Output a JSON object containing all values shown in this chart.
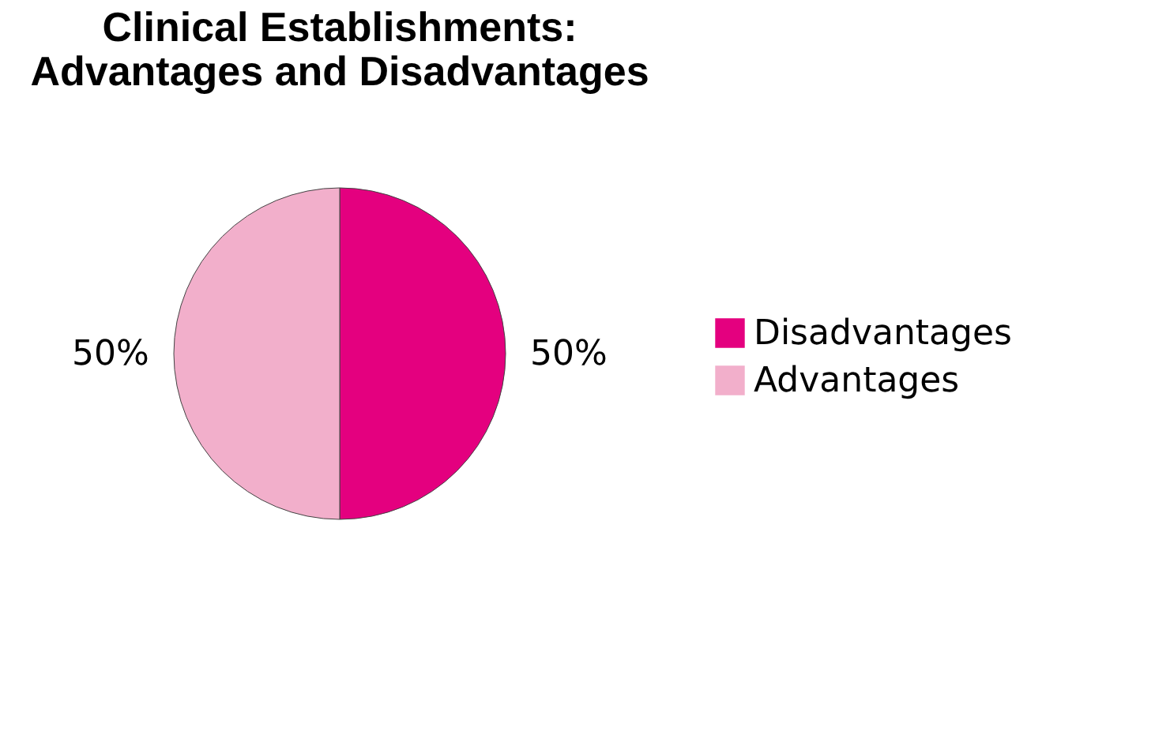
{
  "chart_data": {
    "type": "pie",
    "title": "Clinical Establishments:\nAdvantages and Disadvantages",
    "categories": [
      "Disadvantages",
      "Advantages"
    ],
    "values": [
      50,
      50
    ],
    "colors": [
      "#e4007f",
      "#f2afcb"
    ],
    "value_labels": [
      "50%",
      "50%"
    ],
    "legend": "right"
  }
}
